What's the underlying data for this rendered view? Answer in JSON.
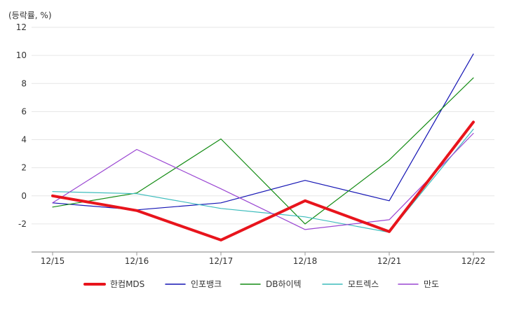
{
  "chart_data": {
    "type": "line",
    "unit_label": "(등락률, %)",
    "categories": [
      "12/15",
      "12/16",
      "12/17",
      "12/18",
      "12/21",
      "12/22"
    ],
    "ylim": [
      -4,
      12
    ],
    "yticks": [
      -2,
      0,
      2,
      4,
      6,
      8,
      10,
      12
    ],
    "grid": true,
    "legend_position": "bottom",
    "series": [
      {
        "name": "한컴MDS",
        "color": "#e8141c",
        "width": 4,
        "values": [
          0.0,
          -1.05,
          -3.15,
          -0.35,
          -2.55,
          5.25
        ]
      },
      {
        "name": "인포뱅크",
        "color": "#1414b4",
        "width": 1.2,
        "values": [
          -0.5,
          -1.0,
          -0.5,
          1.1,
          -0.35,
          10.1
        ]
      },
      {
        "name": "DB하이텍",
        "color": "#148c14",
        "width": 1.2,
        "values": [
          -0.8,
          0.2,
          4.05,
          -2.0,
          2.55,
          8.4
        ]
      },
      {
        "name": "모트렉스",
        "color": "#3cbcbc",
        "width": 1.2,
        "values": [
          0.3,
          0.15,
          -0.9,
          -1.5,
          -2.6,
          4.75
        ]
      },
      {
        "name": "만도",
        "color": "#9a46d2",
        "width": 1.2,
        "values": [
          -0.5,
          3.3,
          0.5,
          -2.4,
          -1.7,
          4.45
        ]
      }
    ]
  }
}
